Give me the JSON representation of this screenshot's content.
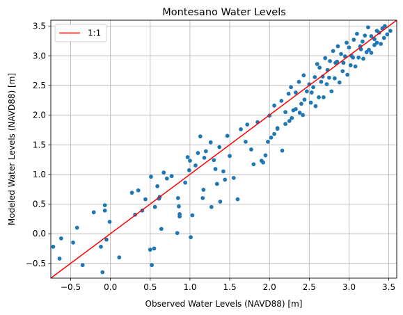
{
  "chart_data": {
    "type": "scatter",
    "title": "Montesano Water Levels",
    "xlabel": "Observed Water Levels (NAVD88) [m]",
    "ylabel": "Modeled Water Levels (NAVD88) [m]",
    "xlim": [
      -0.75,
      3.6
    ],
    "ylim": [
      -0.75,
      3.6
    ],
    "xticks": [
      -0.5,
      0.0,
      0.5,
      1.0,
      1.5,
      2.0,
      2.5,
      3.0,
      3.5
    ],
    "xtick_labels": [
      "−0.5",
      "0.0",
      "0.5",
      "1.0",
      "1.5",
      "2.0",
      "2.5",
      "3.0",
      "3.5"
    ],
    "yticks": [
      -0.5,
      0.0,
      0.5,
      1.0,
      1.5,
      2.0,
      2.5,
      3.0,
      3.5
    ],
    "ytick_labels": [
      "−0.5",
      "0.0",
      "0.5",
      "1.0",
      "1.5",
      "2.0",
      "2.5",
      "3.0",
      "3.5"
    ],
    "grid": true,
    "legend": {
      "position": "top-left",
      "entries": [
        {
          "label": "1:1",
          "color": "#ff0000"
        }
      ]
    },
    "colors": {
      "points": "#1f77b4",
      "line": "#ff0000",
      "grid": "#b0b0b0"
    },
    "series": [
      {
        "type": "line",
        "color": "#ff0000",
        "x": [
          -0.75,
          3.6
        ],
        "y": [
          -0.75,
          3.6
        ]
      },
      {
        "type": "scatter",
        "color": "#1f77b4",
        "x": [
          -0.72,
          -0.62,
          -0.64,
          -0.47,
          -0.42,
          -0.35,
          -0.21,
          -0.12,
          -0.1,
          -0.07,
          -0.07,
          -0.05,
          -0.01,
          0.11,
          0.27,
          0.31,
          0.35,
          0.4,
          0.44,
          0.5,
          0.51,
          0.52,
          0.55,
          0.56,
          0.59,
          0.61,
          0.62,
          0.64,
          0.67,
          0.71,
          0.77,
          0.84,
          0.85,
          0.86,
          0.87,
          0.87,
          0.94,
          0.97,
          0.99,
          1.0,
          1.01,
          1.03,
          1.07,
          1.1,
          1.13,
          1.16,
          1.17,
          1.18,
          1.2,
          1.26,
          1.27,
          1.3,
          1.32,
          1.34,
          1.37,
          1.38,
          1.42,
          1.44,
          1.47,
          1.5,
          1.55,
          1.6,
          1.64,
          1.7,
          1.72,
          1.77,
          1.8,
          1.85,
          1.9,
          1.95,
          2.0,
          2.02,
          2.06,
          2.1,
          2.15,
          2.2,
          2.24,
          2.27,
          2.3,
          2.33,
          2.37,
          2.4,
          2.43,
          2.47,
          2.5,
          2.53,
          2.57,
          2.6,
          2.63,
          2.67,
          2.7,
          2.73,
          2.76,
          2.8,
          2.83,
          2.86,
          2.9,
          2.93,
          2.97,
          3.0,
          3.03,
          3.06,
          3.1,
          3.14,
          3.17,
          3.2,
          3.24,
          3.28,
          3.32,
          3.35,
          3.38,
          3.42,
          3.45,
          3.48,
          3.52,
          2.2,
          2.33,
          2.44,
          2.55,
          2.65,
          2.75,
          2.85,
          2.95,
          3.05,
          3.15,
          3.25,
          3.35,
          2.1,
          2.25,
          2.38,
          2.52,
          2.62,
          2.72,
          2.82,
          2.92,
          3.02,
          3.12,
          3.22,
          3.32,
          3.44,
          1.92,
          1.98,
          2.06,
          2.16,
          2.28,
          2.42,
          2.58,
          2.68,
          2.78,
          2.88,
          2.98,
          3.08,
          3.18,
          3.28,
          3.4
        ],
        "y": [
          -0.22,
          -0.08,
          -0.42,
          -0.15,
          0.1,
          -0.53,
          0.36,
          -0.22,
          -0.65,
          0.48,
          0.39,
          -0.1,
          0.2,
          -0.4,
          0.69,
          0.32,
          0.73,
          0.39,
          0.58,
          -0.27,
          0.96,
          -0.53,
          -0.25,
          0.45,
          0.8,
          0.59,
          0.62,
          0.08,
          1.03,
          0.93,
          0.97,
          0.01,
          0.6,
          0.46,
          0.29,
          0.33,
          0.86,
          1.29,
          1.07,
          1.23,
          -0.06,
          0.31,
          1.15,
          1.36,
          1.64,
          0.6,
          0.74,
          1.28,
          1.39,
          1.54,
          0.45,
          1.24,
          1.09,
          0.84,
          1.46,
          0.54,
          1.05,
          0.91,
          1.65,
          1.31,
          0.94,
          0.58,
          1.76,
          1.55,
          1.84,
          1.42,
          1.17,
          1.88,
          1.23,
          1.32,
          1.99,
          1.62,
          2.16,
          1.77,
          2.24,
          2.05,
          2.36,
          2.47,
          2.08,
          2.38,
          2.56,
          2.19,
          2.67,
          2.4,
          2.52,
          2.38,
          2.64,
          2.86,
          2.8,
          2.65,
          2.96,
          2.76,
          2.91,
          3.08,
          2.88,
          3.16,
          3.03,
          2.88,
          3.22,
          3.14,
          3.0,
          3.27,
          3.37,
          3.16,
          3.24,
          3.34,
          3.48,
          3.33,
          3.28,
          3.42,
          3.39,
          3.46,
          3.5,
          3.36,
          3.42,
          1.85,
          2.1,
          2.26,
          2.47,
          2.56,
          2.63,
          2.9,
          2.99,
          2.97,
          3.11,
          3.1,
          3.22,
          1.78,
          1.9,
          2.04,
          2.21,
          2.3,
          2.52,
          2.62,
          2.74,
          2.84,
          2.97,
          3.06,
          3.18,
          3.3,
          1.2,
          1.55,
          1.68,
          1.4,
          1.95,
          2.0,
          2.15,
          2.3,
          2.4,
          2.55,
          2.68,
          2.82,
          2.95,
          3.05,
          3.2
        ]
      }
    ]
  }
}
